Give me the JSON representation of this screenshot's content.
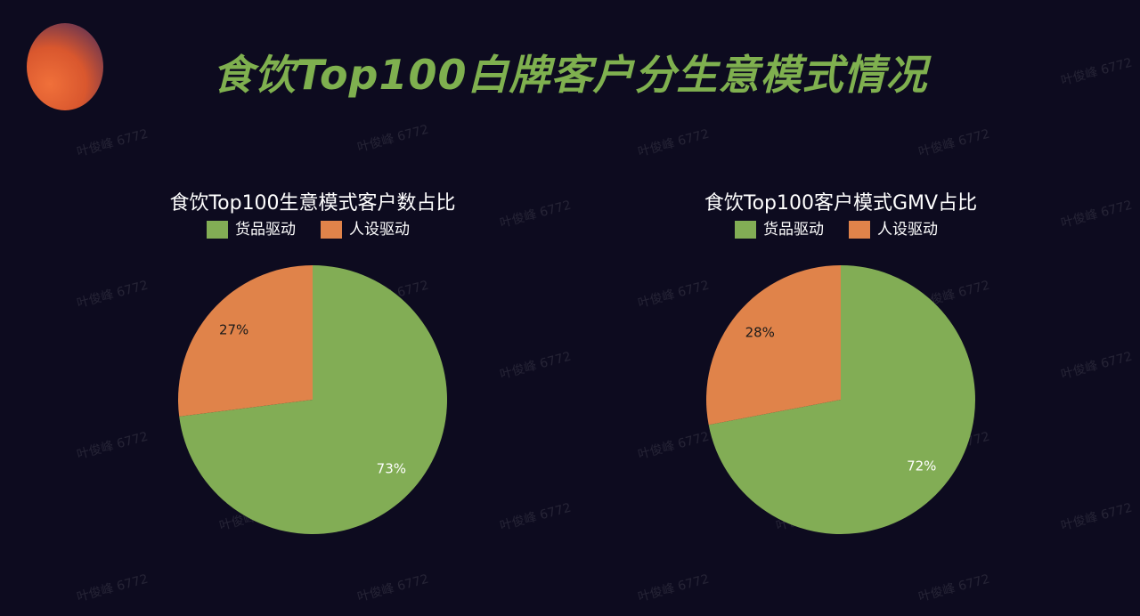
{
  "page": {
    "title": "食饮Top100白牌客户分生意模式情况",
    "watermark": "叶俊峰 6772"
  },
  "colors": {
    "background": "#0d0b1f",
    "title": "#7fb04f",
    "series_goods": "#82ad55",
    "series_persona": "#e0834a"
  },
  "chart_data": [
    {
      "type": "pie",
      "title": "食饮Top100生意模式客户数占比",
      "legend": [
        "货品驱动",
        "人设驱动"
      ],
      "legend_position": "top",
      "slices": [
        {
          "name": "货品驱动",
          "value": 73,
          "label": "73%"
        },
        {
          "name": "人设驱动",
          "value": 27,
          "label": "27%"
        }
      ]
    },
    {
      "type": "pie",
      "title": "食饮Top100客户模式GMV占比",
      "legend": [
        "货品驱动",
        "人设驱动"
      ],
      "legend_position": "top",
      "slices": [
        {
          "name": "货品驱动",
          "value": 72,
          "label": "72%"
        },
        {
          "name": "人设驱动",
          "value": 28,
          "label": "28%"
        }
      ]
    }
  ]
}
